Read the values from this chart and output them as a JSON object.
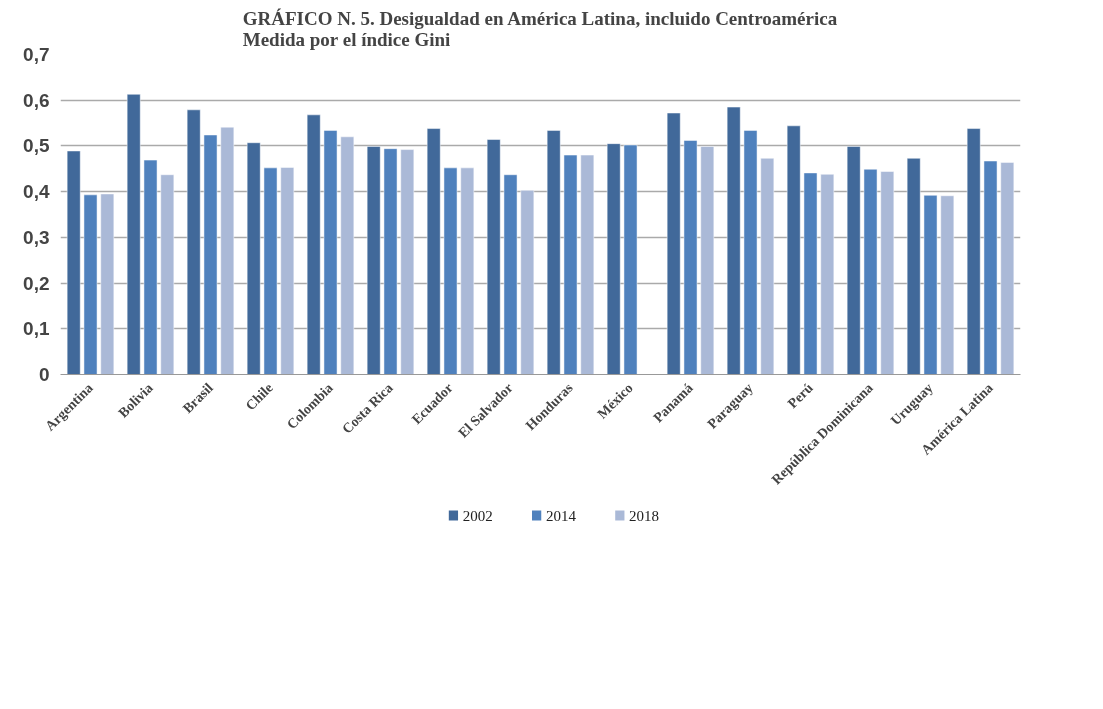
{
  "chart_data": {
    "type": "bar",
    "title": "GRÁFICO N. 5. Desigualdad en América Latina, incluido Centroamérica\nMedida por el índice Gini",
    "categories": [
      "Argentina",
      "Bolivia",
      "Brasil",
      "Chile",
      "Colombia",
      "Costa Rica",
      "Ecuador",
      "El Salvador",
      "Honduras",
      "México",
      "Panamá",
      "Paraguay",
      "Perú",
      "República Dominicana",
      "Uruguay",
      "América Latina"
    ],
    "series": [
      {
        "name": "2002",
        "color": "#41699a",
        "values": [
          0.489,
          0.613,
          0.579,
          0.507,
          0.568,
          0.499,
          0.538,
          0.514,
          0.534,
          0.505,
          0.572,
          0.585,
          0.544,
          0.499,
          0.473,
          0.538
        ]
      },
      {
        "name": "2014",
        "color": "#4f81bd",
        "values": [
          0.393,
          0.469,
          0.524,
          0.452,
          0.534,
          0.494,
          0.452,
          0.437,
          0.48,
          0.502,
          0.512,
          0.534,
          0.441,
          0.449,
          0.392,
          0.467
        ]
      },
      {
        "name": "2018",
        "color": "#aab9d7",
        "values": [
          0.395,
          0.437,
          0.541,
          0.453,
          0.52,
          0.492,
          0.452,
          0.403,
          0.48,
          null,
          0.499,
          0.473,
          0.438,
          0.444,
          0.391,
          0.464
        ]
      }
    ],
    "ylim": [
      0,
      0.7
    ],
    "yticks": [
      0,
      {
        "value": 0.1,
        "label": "0,1"
      },
      {
        "value": 0.2,
        "label": "0,2"
      },
      {
        "value": 0.3,
        "label": "0,3"
      },
      {
        "value": 0.4,
        "label": "0,4"
      },
      {
        "value": 0.5,
        "label": "0,5"
      },
      {
        "value": 0.6,
        "label": "0,6"
      },
      {
        "value": 0.7,
        "label": "0,7"
      }
    ],
    "grid": "y",
    "legend": "bottom"
  }
}
